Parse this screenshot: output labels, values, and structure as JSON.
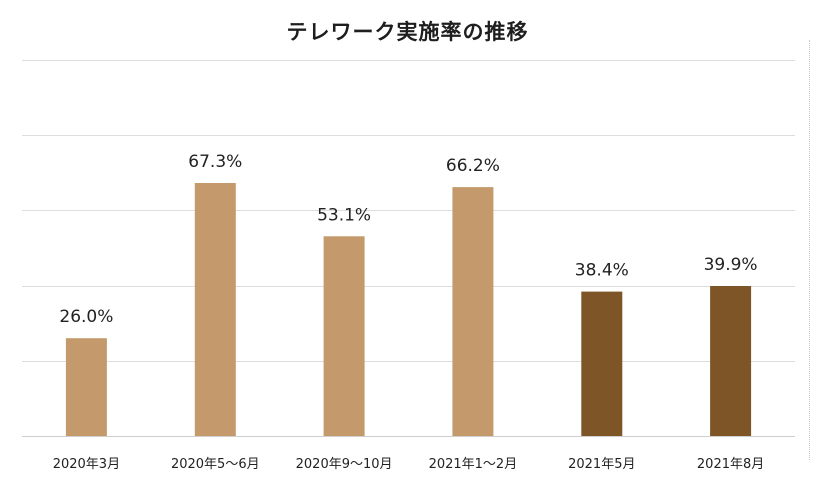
{
  "chart_data": {
    "type": "bar",
    "title": "テレワーク実施率の推移",
    "categories": [
      "2020年3月",
      "2020年5～6月",
      "2020年9～10月",
      "2021年1～2月",
      "2021年5月",
      "2021年8月"
    ],
    "values": [
      26.0,
      67.3,
      53.1,
      66.2,
      38.4,
      39.9
    ],
    "data_labels": [
      "26.0%",
      "67.3%",
      "53.1%",
      "66.2%",
      "38.4%",
      "39.9%"
    ],
    "ylim": [
      0,
      100
    ],
    "grid": true,
    "colors": {
      "light": "#c49a6c",
      "dark": "#7d5526",
      "grid": "#dddddd",
      "text": "#222222"
    },
    "bar_color_keys": [
      "light",
      "light",
      "light",
      "light",
      "dark",
      "dark"
    ]
  }
}
